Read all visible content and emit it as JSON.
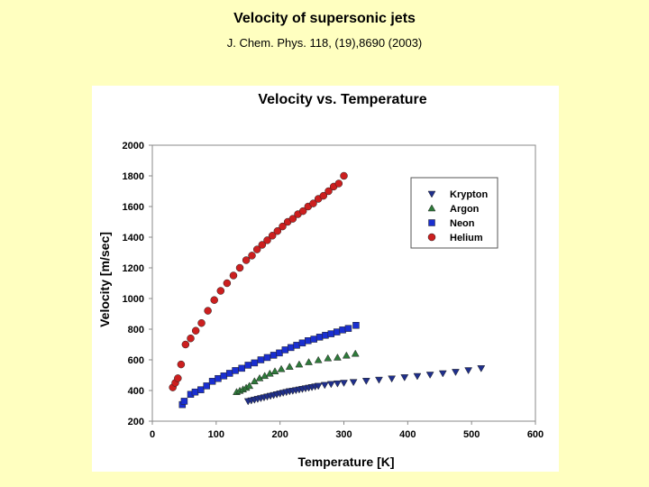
{
  "slide": {
    "title": "Velocity of supersonic jets",
    "subtitle": "J. Chem. Phys. 118, (19),8690 (2003)"
  },
  "chart_data": {
    "type": "scatter",
    "title": "Velocity vs. Temperature",
    "xlabel": "Temperature [K]",
    "ylabel": "Velocity [m/sec]",
    "xlim": [
      0,
      600
    ],
    "ylim": [
      200,
      2000
    ],
    "xticks": [
      0,
      100,
      200,
      300,
      400,
      500,
      600
    ],
    "yticks": [
      200,
      400,
      600,
      800,
      1000,
      1200,
      1400,
      1600,
      1800,
      2000
    ],
    "grid": false,
    "legend_position": "top-right",
    "series": [
      {
        "name": "Krypton",
        "marker": "triangle-down",
        "color": "#1f2f8c",
        "x": [
          150,
          155,
          160,
          165,
          170,
          175,
          180,
          185,
          190,
          195,
          200,
          205,
          210,
          215,
          220,
          225,
          230,
          235,
          240,
          245,
          250,
          255,
          260,
          270,
          280,
          290,
          300,
          315,
          335,
          355,
          375,
          395,
          415,
          435,
          455,
          475,
          495,
          515
        ],
        "y": [
          330,
          335,
          340,
          345,
          350,
          355,
          360,
          365,
          370,
          375,
          380,
          385,
          390,
          395,
          398,
          402,
          406,
          410,
          414,
          418,
          422,
          426,
          430,
          436,
          442,
          446,
          450,
          455,
          463,
          470,
          478,
          486,
          494,
          503,
          512,
          521,
          532,
          545
        ]
      },
      {
        "name": "Argon",
        "marker": "triangle-up",
        "color": "#2e7a3a",
        "x": [
          132,
          137,
          142,
          147,
          152,
          160,
          168,
          176,
          184,
          192,
          202,
          215,
          230,
          245,
          260,
          275,
          290,
          304,
          318
        ],
        "y": [
          390,
          398,
          407,
          418,
          430,
          460,
          480,
          495,
          510,
          525,
          540,
          555,
          570,
          585,
          598,
          610,
          615,
          628,
          640
        ]
      },
      {
        "name": "Neon",
        "marker": "square",
        "color": "#1a2fd0",
        "x": [
          47,
          50,
          60,
          67,
          76,
          85,
          94,
          103,
          112,
          121,
          130,
          140,
          150,
          160,
          170,
          180,
          190,
          199,
          208,
          217,
          226,
          235,
          244,
          253,
          262,
          271,
          280,
          289,
          298,
          307,
          319
        ],
        "y": [
          308,
          330,
          375,
          390,
          405,
          430,
          460,
          478,
          495,
          512,
          530,
          545,
          565,
          580,
          600,
          615,
          630,
          645,
          665,
          680,
          695,
          710,
          725,
          735,
          748,
          760,
          770,
          782,
          795,
          805,
          825
        ]
      },
      {
        "name": "Helium",
        "marker": "circle",
        "color": "#cc1f1f",
        "x": [
          32,
          36,
          40,
          45,
          52,
          60,
          68,
          77,
          87,
          97,
          107,
          117,
          127,
          137,
          147,
          156,
          164,
          172,
          180,
          188,
          196,
          204,
          212,
          220,
          228,
          236,
          244,
          252,
          260,
          268,
          276,
          284,
          292,
          300
        ],
        "y": [
          420,
          450,
          480,
          570,
          700,
          740,
          790,
          840,
          920,
          990,
          1050,
          1100,
          1150,
          1200,
          1250,
          1280,
          1320,
          1350,
          1380,
          1410,
          1440,
          1470,
          1500,
          1520,
          1550,
          1570,
          1600,
          1620,
          1650,
          1670,
          1700,
          1730,
          1750,
          1800
        ]
      }
    ]
  }
}
